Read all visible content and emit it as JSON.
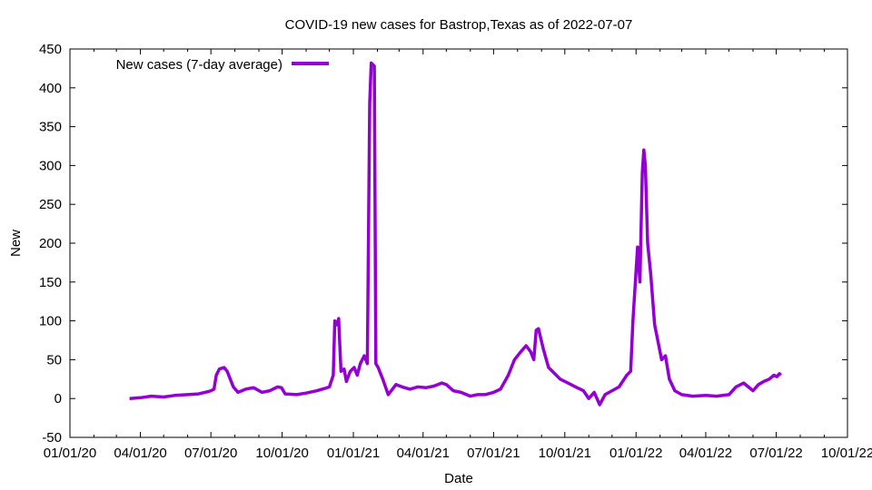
{
  "chart_data": {
    "type": "line",
    "title": "COVID-19 new cases for Bastrop,Texas as of 2022-07-07",
    "xlabel": "Date",
    "ylabel": "New",
    "xlim": [
      "2020-01-01",
      "2022-10-01"
    ],
    "ylim": [
      -50,
      450
    ],
    "x_ticks": [
      "01/01/20",
      "04/01/20",
      "07/01/20",
      "10/01/20",
      "01/01/21",
      "04/01/21",
      "07/01/21",
      "10/01/21",
      "01/01/22",
      "04/01/22",
      "07/01/22",
      "10/01/22"
    ],
    "y_ticks": [
      "-50",
      "0",
      "50",
      "100",
      "150",
      "200",
      "250",
      "300",
      "350",
      "400",
      "450"
    ],
    "grid": false,
    "legend_position": "top-left",
    "series": [
      {
        "name": "New cases (7-day average)",
        "color": "#9400d3",
        "points": [
          [
            "2020-03-18",
            0
          ],
          [
            "2020-04-01",
            1
          ],
          [
            "2020-04-15",
            3
          ],
          [
            "2020-05-01",
            2
          ],
          [
            "2020-05-15",
            4
          ],
          [
            "2020-06-01",
            5
          ],
          [
            "2020-06-15",
            6
          ],
          [
            "2020-06-28",
            9
          ],
          [
            "2020-07-01",
            10
          ],
          [
            "2020-07-05",
            12
          ],
          [
            "2020-07-08",
            30
          ],
          [
            "2020-07-12",
            38
          ],
          [
            "2020-07-18",
            40
          ],
          [
            "2020-07-22",
            35
          ],
          [
            "2020-07-26",
            25
          ],
          [
            "2020-07-30",
            15
          ],
          [
            "2020-08-05",
            8
          ],
          [
            "2020-08-15",
            12
          ],
          [
            "2020-08-25",
            14
          ],
          [
            "2020-09-05",
            8
          ],
          [
            "2020-09-15",
            10
          ],
          [
            "2020-09-25",
            15
          ],
          [
            "2020-09-30",
            14
          ],
          [
            "2020-10-05",
            6
          ],
          [
            "2020-10-20",
            5
          ],
          [
            "2020-11-01",
            7
          ],
          [
            "2020-11-15",
            10
          ],
          [
            "2020-11-25",
            13
          ],
          [
            "2020-12-01",
            15
          ],
          [
            "2020-12-06",
            30
          ],
          [
            "2020-12-08",
            100
          ],
          [
            "2020-12-11",
            95
          ],
          [
            "2020-12-13",
            103
          ],
          [
            "2020-12-16",
            35
          ],
          [
            "2020-12-20",
            38
          ],
          [
            "2020-12-23",
            22
          ],
          [
            "2020-12-28",
            35
          ],
          [
            "2021-01-02",
            40
          ],
          [
            "2021-01-06",
            30
          ],
          [
            "2021-01-10",
            45
          ],
          [
            "2021-01-15",
            55
          ],
          [
            "2021-01-19",
            45
          ],
          [
            "2021-01-22",
            380
          ],
          [
            "2021-01-24",
            432
          ],
          [
            "2021-01-26",
            430
          ],
          [
            "2021-01-28",
            428
          ],
          [
            "2021-01-30",
            45
          ],
          [
            "2021-02-02",
            40
          ],
          [
            "2021-02-08",
            25
          ],
          [
            "2021-02-15",
            5
          ],
          [
            "2021-02-25",
            18
          ],
          [
            "2021-03-05",
            15
          ],
          [
            "2021-03-15",
            12
          ],
          [
            "2021-03-25",
            15
          ],
          [
            "2021-04-05",
            14
          ],
          [
            "2021-04-15",
            16
          ],
          [
            "2021-04-25",
            20
          ],
          [
            "2021-05-01",
            18
          ],
          [
            "2021-05-10",
            10
          ],
          [
            "2021-05-20",
            8
          ],
          [
            "2021-06-01",
            3
          ],
          [
            "2021-06-10",
            5
          ],
          [
            "2021-06-20",
            5
          ],
          [
            "2021-07-01",
            8
          ],
          [
            "2021-07-10",
            12
          ],
          [
            "2021-07-20",
            30
          ],
          [
            "2021-07-28",
            50
          ],
          [
            "2021-08-05",
            60
          ],
          [
            "2021-08-12",
            68
          ],
          [
            "2021-08-18",
            60
          ],
          [
            "2021-08-22",
            50
          ],
          [
            "2021-08-25",
            88
          ],
          [
            "2021-08-28",
            90
          ],
          [
            "2021-09-03",
            65
          ],
          [
            "2021-09-10",
            40
          ],
          [
            "2021-09-15",
            35
          ],
          [
            "2021-09-25",
            25
          ],
          [
            "2021-10-05",
            20
          ],
          [
            "2021-10-15",
            15
          ],
          [
            "2021-10-25",
            10
          ],
          [
            "2021-11-01",
            0
          ],
          [
            "2021-11-08",
            8
          ],
          [
            "2021-11-15",
            -8
          ],
          [
            "2021-11-22",
            5
          ],
          [
            "2021-12-01",
            10
          ],
          [
            "2021-12-10",
            15
          ],
          [
            "2021-12-20",
            30
          ],
          [
            "2021-12-25",
            35
          ],
          [
            "2021-12-28",
            100
          ],
          [
            "2022-01-03",
            195
          ],
          [
            "2022-01-06",
            150
          ],
          [
            "2022-01-09",
            290
          ],
          [
            "2022-01-11",
            320
          ],
          [
            "2022-01-13",
            300
          ],
          [
            "2022-01-16",
            200
          ],
          [
            "2022-01-20",
            160
          ],
          [
            "2022-01-25",
            95
          ],
          [
            "2022-01-30",
            70
          ],
          [
            "2022-02-03",
            50
          ],
          [
            "2022-02-08",
            55
          ],
          [
            "2022-02-13",
            25
          ],
          [
            "2022-02-20",
            10
          ],
          [
            "2022-03-01",
            5
          ],
          [
            "2022-03-15",
            3
          ],
          [
            "2022-04-01",
            4
          ],
          [
            "2022-04-15",
            3
          ],
          [
            "2022-05-01",
            5
          ],
          [
            "2022-05-10",
            15
          ],
          [
            "2022-05-20",
            20
          ],
          [
            "2022-05-26",
            15
          ],
          [
            "2022-06-01",
            10
          ],
          [
            "2022-06-08",
            18
          ],
          [
            "2022-06-15",
            22
          ],
          [
            "2022-06-22",
            25
          ],
          [
            "2022-06-28",
            30
          ],
          [
            "2022-07-02",
            28
          ],
          [
            "2022-07-05",
            32
          ],
          [
            "2022-07-07",
            30
          ]
        ]
      }
    ]
  }
}
